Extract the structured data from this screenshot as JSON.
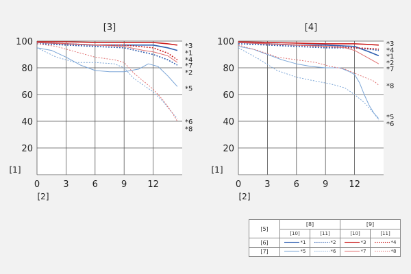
{
  "chart_data": [
    {
      "type": "line",
      "title": "[3]",
      "ylabel": "[1]",
      "xlabel": "[2]",
      "xlim": [
        0,
        15
      ],
      "ylim": [
        0,
        100
      ],
      "x_ticks": [
        0,
        3,
        6,
        9,
        12
      ],
      "y_ticks": [
        20,
        40,
        60,
        80,
        100
      ],
      "series": [
        {
          "name": "*1",
          "color": "#2f5fb0",
          "style": "solid",
          "width": 1.6,
          "x": [
            0,
            3,
            6,
            9,
            12,
            13.5,
            14.5
          ],
          "y": [
            99,
            98,
            97,
            97,
            97,
            95,
            93
          ]
        },
        {
          "name": "*2",
          "color": "#2f5fb0",
          "style": "dotted",
          "width": 1.6,
          "x": [
            0,
            3,
            6,
            9,
            12,
            13.5,
            14.5
          ],
          "y": [
            98,
            97,
            96,
            95,
            90,
            86,
            82
          ]
        },
        {
          "name": "*3",
          "color": "#cc2020",
          "style": "solid",
          "width": 1.6,
          "x": [
            0,
            3,
            6,
            9,
            12,
            13.5,
            14.5
          ],
          "y": [
            99.5,
            99.5,
            99,
            99,
            99,
            98,
            97
          ]
        },
        {
          "name": "*4",
          "color": "#cc2020",
          "style": "dotted",
          "width": 1.6,
          "x": [
            0,
            3,
            6,
            9,
            12,
            13.5,
            14.5
          ],
          "y": [
            99,
            98,
            97,
            97,
            95,
            91,
            86
          ]
        },
        {
          "name": "*5",
          "color": "#79a4d6",
          "style": "solid",
          "width": 1.0,
          "x": [
            0,
            1.5,
            3,
            4.5,
            6,
            7.5,
            9,
            10.5,
            11.5,
            12.5,
            13.5,
            14.5
          ],
          "y": [
            95,
            93,
            88,
            82,
            78,
            77,
            77,
            79,
            83,
            81,
            74,
            66
          ]
        },
        {
          "name": "*6",
          "color": "#79a4d6",
          "style": "dotted",
          "width": 1.0,
          "x": [
            0,
            2,
            4,
            6,
            8,
            9,
            10,
            11,
            12,
            13,
            14,
            14.5
          ],
          "y": [
            95,
            88,
            84,
            84,
            83,
            80,
            72,
            67,
            62,
            55,
            46,
            42
          ]
        },
        {
          "name": "*7",
          "color": "#e07070",
          "style": "solid",
          "width": 1.0,
          "x": [
            0,
            3,
            6,
            9,
            11,
            12,
            13.5,
            14.5
          ],
          "y": [
            99,
            98,
            97,
            96,
            93,
            92,
            89,
            84
          ]
        },
        {
          "name": "*8",
          "color": "#e07070",
          "style": "dotted",
          "width": 1.0,
          "x": [
            0,
            2,
            4,
            6,
            8,
            9,
            10,
            11,
            12,
            13,
            14,
            14.5
          ],
          "y": [
            98,
            96,
            92,
            88,
            86,
            84,
            76,
            70,
            64,
            56,
            46,
            40
          ]
        }
      ],
      "end_labels": [
        {
          "text": "*3",
          "y": 97
        },
        {
          "text": "*1",
          "y": 91.5
        },
        {
          "text": "*4",
          "y": 86.5
        },
        {
          "text": "*7",
          "y": 82
        },
        {
          "text": "*2",
          "y": 77
        },
        {
          "text": "*5",
          "y": 65
        },
        {
          "text": "*6",
          "y": 40
        },
        {
          "text": "*8",
          "y": 34.5
        }
      ]
    },
    {
      "type": "line",
      "title": "[4]",
      "ylabel": "[1]",
      "xlabel": "[2]",
      "xlim": [
        0,
        15
      ],
      "ylim": [
        0,
        100
      ],
      "x_ticks": [
        0,
        3,
        6,
        9,
        12
      ],
      "y_ticks": [
        20,
        40,
        60,
        80,
        100
      ],
      "series": [
        {
          "name": "*1",
          "color": "#2f5fb0",
          "style": "solid",
          "width": 1.6,
          "x": [
            0,
            3,
            6,
            9,
            12,
            13.5,
            14.5
          ],
          "y": [
            99,
            98,
            97,
            97,
            96,
            92,
            89
          ]
        },
        {
          "name": "*2",
          "color": "#2f5fb0",
          "style": "dotted",
          "width": 1.6,
          "x": [
            0,
            3,
            6,
            9,
            12,
            13.5,
            14.5
          ],
          "y": [
            98,
            97,
            96,
            95,
            95,
            94,
            93
          ]
        },
        {
          "name": "*3",
          "color": "#cc2020",
          "style": "solid",
          "width": 1.6,
          "x": [
            0,
            3,
            6,
            9,
            12,
            13.5,
            14.5
          ],
          "y": [
            99.5,
            99,
            98.5,
            98,
            98,
            97.5,
            97
          ]
        },
        {
          "name": "*4",
          "color": "#cc2020",
          "style": "dotted",
          "width": 1.6,
          "x": [
            0,
            3,
            6,
            9,
            12,
            13.5,
            14.5
          ],
          "y": [
            99,
            98,
            97,
            96,
            95,
            94.5,
            94
          ]
        },
        {
          "name": "*5",
          "color": "#79a4d6",
          "style": "solid",
          "width": 1.0,
          "x": [
            0,
            1.5,
            3,
            4.5,
            6,
            7.5,
            9,
            10.5,
            11.5,
            12,
            12.5,
            13,
            13.5,
            14,
            14.5
          ],
          "y": [
            96,
            94,
            90,
            86,
            83,
            81,
            80,
            80,
            77,
            75,
            69,
            60,
            52,
            46,
            42
          ]
        },
        {
          "name": "*6",
          "color": "#79a4d6",
          "style": "dotted",
          "width": 1.0,
          "x": [
            0,
            2,
            4,
            6,
            8,
            9.5,
            11,
            12,
            13,
            14,
            14.5
          ],
          "y": [
            95,
            87,
            78,
            73,
            70,
            68,
            65,
            60,
            54,
            46,
            41
          ]
        },
        {
          "name": "*7",
          "color": "#e07070",
          "style": "solid",
          "width": 1.0,
          "x": [
            0,
            3,
            6,
            9,
            11,
            12,
            13.5,
            14.5
          ],
          "y": [
            99,
            98,
            97,
            96,
            95,
            93,
            87,
            83
          ]
        },
        {
          "name": "*8",
          "color": "#e07070",
          "style": "dotted",
          "width": 1.0,
          "x": [
            0,
            2,
            4,
            6,
            8,
            9.5,
            11,
            12,
            13,
            14,
            14.5
          ],
          "y": [
            97,
            93,
            88,
            86,
            84,
            81,
            79,
            76,
            73,
            70,
            67
          ]
        }
      ],
      "end_labels": [
        {
          "text": "*3",
          "y": 98.5
        },
        {
          "text": "*4",
          "y": 93.5
        },
        {
          "text": "*1",
          "y": 89
        },
        {
          "text": "*2",
          "y": 84
        },
        {
          "text": "*7",
          "y": 79.5
        },
        {
          "text": "*8",
          "y": 67
        },
        {
          "text": "*5",
          "y": 43.5
        },
        {
          "text": "*6",
          "y": 38.5
        }
      ]
    }
  ],
  "legend": {
    "corner": "[5]",
    "group_a": "[8]",
    "group_b": "[9]",
    "sub_a": "[10]",
    "sub_b": "[11]",
    "row1": "[6]",
    "row2": "[7]",
    "entries": {
      "r1a1": {
        "label": "*1",
        "color": "#2f5fb0",
        "style": "solid",
        "width": 1.6
      },
      "r1a2": {
        "label": "*2",
        "color": "#2f5fb0",
        "style": "dotted",
        "width": 1.6
      },
      "r1b1": {
        "label": "*3",
        "color": "#cc2020",
        "style": "solid",
        "width": 1.6
      },
      "r1b2": {
        "label": "*4",
        "color": "#cc2020",
        "style": "dotted",
        "width": 1.6
      },
      "r2a1": {
        "label": "*5",
        "color": "#79a4d6",
        "style": "solid",
        "width": 1.0
      },
      "r2a2": {
        "label": "*6",
        "color": "#79a4d6",
        "style": "dotted",
        "width": 1.0
      },
      "r2b1": {
        "label": "*7",
        "color": "#e07070",
        "style": "solid",
        "width": 1.0
      },
      "r2b2": {
        "label": "*8",
        "color": "#e07070",
        "style": "dotted",
        "width": 1.0
      }
    }
  }
}
